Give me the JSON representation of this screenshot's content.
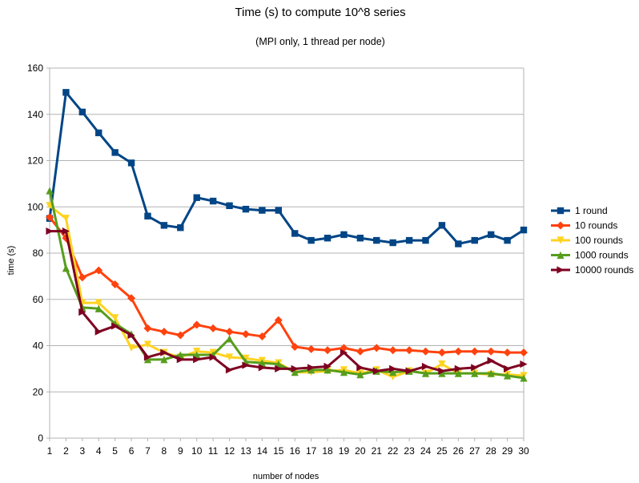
{
  "chart_data": {
    "type": "line",
    "title": "Time (s) to compute 10^8 series",
    "subtitle": "(MPI only, 1 thread per node)",
    "xlabel": "number of nodes",
    "ylabel": "time (s)",
    "ylim": [
      0,
      160
    ],
    "yticks": [
      0,
      20,
      40,
      60,
      80,
      100,
      120,
      140,
      160
    ],
    "grid": "horizontal",
    "legend_position": "right",
    "x": [
      1,
      2,
      3,
      4,
      5,
      6,
      7,
      8,
      9,
      10,
      11,
      12,
      13,
      14,
      15,
      16,
      17,
      18,
      19,
      20,
      21,
      22,
      23,
      24,
      25,
      26,
      27,
      28,
      29,
      30
    ],
    "series": [
      {
        "name": "1 round",
        "color": "#004586",
        "marker": "square",
        "values": [
          95,
          149.5,
          141,
          132,
          123.5,
          119,
          96,
          92,
          91,
          104,
          102.5,
          100.5,
          99,
          98.5,
          98.5,
          88.5,
          85.5,
          86.5,
          88,
          86.5,
          85.5,
          84.5,
          85.5,
          85.5,
          92,
          84,
          85.5,
          88,
          85.5,
          90
        ]
      },
      {
        "name": "10 rounds",
        "color": "#ff420e",
        "marker": "diamond",
        "values": [
          95.5,
          86.5,
          69.5,
          72.5,
          66.5,
          60.5,
          47.5,
          46,
          44.5,
          49,
          47.5,
          46,
          45,
          44,
          51,
          39.5,
          38.5,
          38,
          39,
          37.5,
          39,
          38,
          38,
          37.5,
          37,
          37.5,
          37.5,
          37.5,
          37,
          37
        ]
      },
      {
        "name": "100 rounds",
        "color": "#ffd320",
        "marker": "triangle-down",
        "values": [
          100.5,
          95,
          58.5,
          58.5,
          52,
          39,
          40.5,
          37,
          35,
          37.5,
          37,
          35,
          34.5,
          33.5,
          32.5,
          28.5,
          28.5,
          29,
          29.5,
          28,
          29.5,
          26.5,
          29,
          28,
          32,
          28,
          28,
          27.5,
          27.5,
          27
        ]
      },
      {
        "name": "1000 rounds",
        "color": "#579d1c",
        "marker": "triangle-up",
        "values": [
          107,
          73.5,
          56.5,
          56,
          49.5,
          45,
          34,
          34,
          36,
          36,
          36,
          43,
          33,
          32.5,
          32,
          28.5,
          29.5,
          29.5,
          28.5,
          27.5,
          29,
          28.5,
          29,
          28,
          28,
          28,
          28,
          28,
          27,
          26
        ]
      },
      {
        "name": "10000 rounds",
        "color": "#7e0021",
        "marker": "triangle-right",
        "values": [
          89.5,
          89.5,
          54.5,
          46,
          48.5,
          44.5,
          35,
          37,
          34,
          34,
          35,
          29.5,
          31.5,
          30.5,
          30,
          30,
          30.5,
          31,
          37,
          30.5,
          29,
          30,
          29,
          31,
          29,
          30,
          30.5,
          33.5,
          30,
          32
        ]
      }
    ]
  }
}
